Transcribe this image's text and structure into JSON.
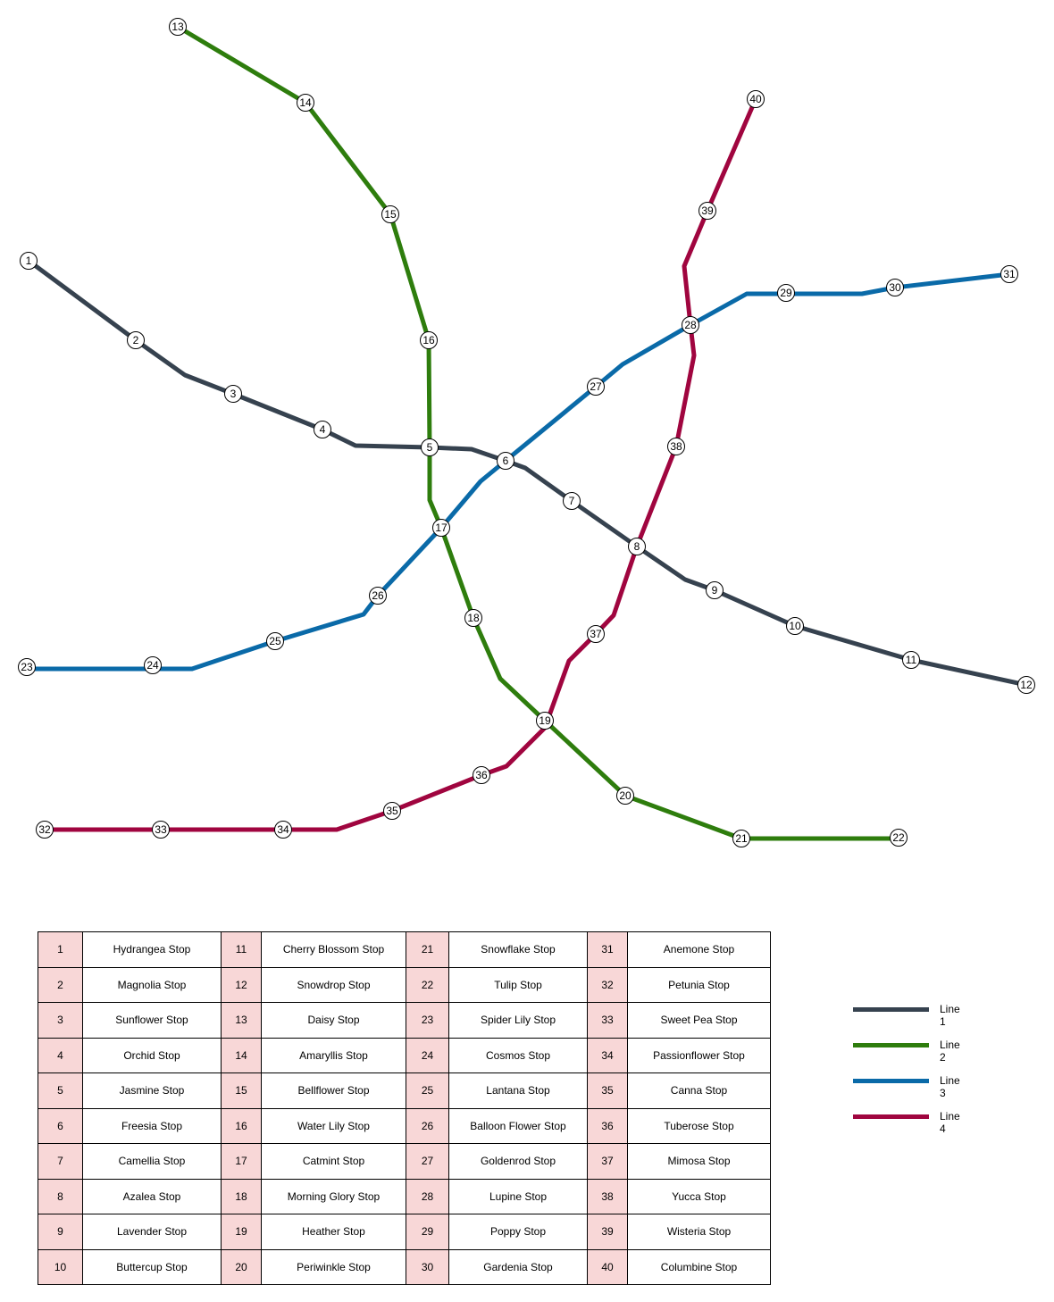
{
  "lines": [
    {
      "name": "Line 1",
      "color": "#36424f",
      "stops": [
        "1",
        "2",
        "3",
        "4",
        "5",
        "6",
        "7",
        "8",
        "9",
        "10",
        "11",
        "12"
      ]
    },
    {
      "name": "Line 2",
      "color": "#2e7d0d",
      "stops": [
        "13",
        "14",
        "15",
        "16",
        "5",
        "17",
        "18",
        "19",
        "20",
        "21",
        "22"
      ]
    },
    {
      "name": "Line 3",
      "color": "#0a6aa8",
      "stops": [
        "23",
        "24",
        "25",
        "26",
        "17",
        "6",
        "27",
        "28",
        "29",
        "30",
        "31"
      ]
    },
    {
      "name": "Line 4",
      "color": "#a0053f",
      "stops": [
        "32",
        "33",
        "34",
        "35",
        "36",
        "19",
        "37",
        "8",
        "38",
        "28",
        "39",
        "40"
      ]
    }
  ],
  "stations": [
    {
      "id": "1",
      "name": "Hydrangea Stop"
    },
    {
      "id": "2",
      "name": "Magnolia Stop"
    },
    {
      "id": "3",
      "name": "Sunflower Stop"
    },
    {
      "id": "4",
      "name": "Orchid Stop"
    },
    {
      "id": "5",
      "name": "Jasmine Stop"
    },
    {
      "id": "6",
      "name": "Freesia Stop"
    },
    {
      "id": "7",
      "name": "Camellia Stop"
    },
    {
      "id": "8",
      "name": "Azalea Stop"
    },
    {
      "id": "9",
      "name": "Lavender Stop"
    },
    {
      "id": "10",
      "name": "Buttercup Stop"
    },
    {
      "id": "11",
      "name": "Cherry Blossom Stop"
    },
    {
      "id": "12",
      "name": "Snowdrop Stop"
    },
    {
      "id": "13",
      "name": "Daisy Stop"
    },
    {
      "id": "14",
      "name": "Amaryllis Stop"
    },
    {
      "id": "15",
      "name": "Bellflower Stop"
    },
    {
      "id": "16",
      "name": "Water Lily Stop"
    },
    {
      "id": "17",
      "name": "Catmint Stop"
    },
    {
      "id": "18",
      "name": "Morning Glory Stop"
    },
    {
      "id": "19",
      "name": "Heather Stop"
    },
    {
      "id": "20",
      "name": "Periwinkle Stop"
    },
    {
      "id": "21",
      "name": "Snowflake Stop"
    },
    {
      "id": "22",
      "name": "Tulip Stop"
    },
    {
      "id": "23",
      "name": "Spider Lily Stop"
    },
    {
      "id": "24",
      "name": "Cosmos Stop"
    },
    {
      "id": "25",
      "name": "Lantana Stop"
    },
    {
      "id": "26",
      "name": "Balloon Flower Stop"
    },
    {
      "id": "27",
      "name": "Goldenrod Stop"
    },
    {
      "id": "28",
      "name": "Lupine Stop"
    },
    {
      "id": "29",
      "name": "Poppy Stop"
    },
    {
      "id": "30",
      "name": "Gardenia Stop"
    },
    {
      "id": "31",
      "name": "Anemone Stop"
    },
    {
      "id": "32",
      "name": "Petunia Stop"
    },
    {
      "id": "33",
      "name": "Sweet Pea Stop"
    },
    {
      "id": "34",
      "name": "Passionflower Stop"
    },
    {
      "id": "35",
      "name": "Canna Stop"
    },
    {
      "id": "36",
      "name": "Tuberose Stop"
    },
    {
      "id": "37",
      "name": "Mimosa Stop"
    },
    {
      "id": "38",
      "name": "Yucca Stop"
    },
    {
      "id": "39",
      "name": "Wisteria Stop"
    },
    {
      "id": "40",
      "name": "Columbine Stop"
    }
  ]
}
